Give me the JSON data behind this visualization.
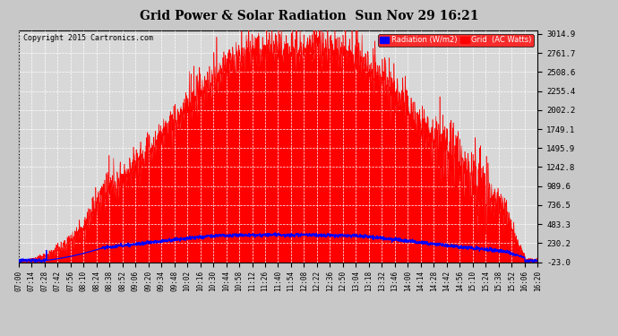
{
  "title": "Grid Power & Solar Radiation  Sun Nov 29 16:21",
  "copyright": "Copyright 2015 Cartronics.com",
  "yticks": [
    3014.9,
    2761.7,
    2508.6,
    2255.4,
    2002.2,
    1749.1,
    1495.9,
    1242.8,
    989.6,
    736.5,
    483.3,
    230.2,
    -23.0
  ],
  "ymin": -23.0,
  "ymax": 3014.9,
  "outer_bg_color": "#c8c8c8",
  "plot_bg_color": "#d8d8d8",
  "grid_color": "#ffffff",
  "radiation_line_color": "#0000ff",
  "grid_fill_color": "#ff0000",
  "x_start_hour": 7,
  "x_start_min": 0,
  "x_end_hour": 16,
  "x_end_min": 20,
  "x_tick_interval_min": 14
}
